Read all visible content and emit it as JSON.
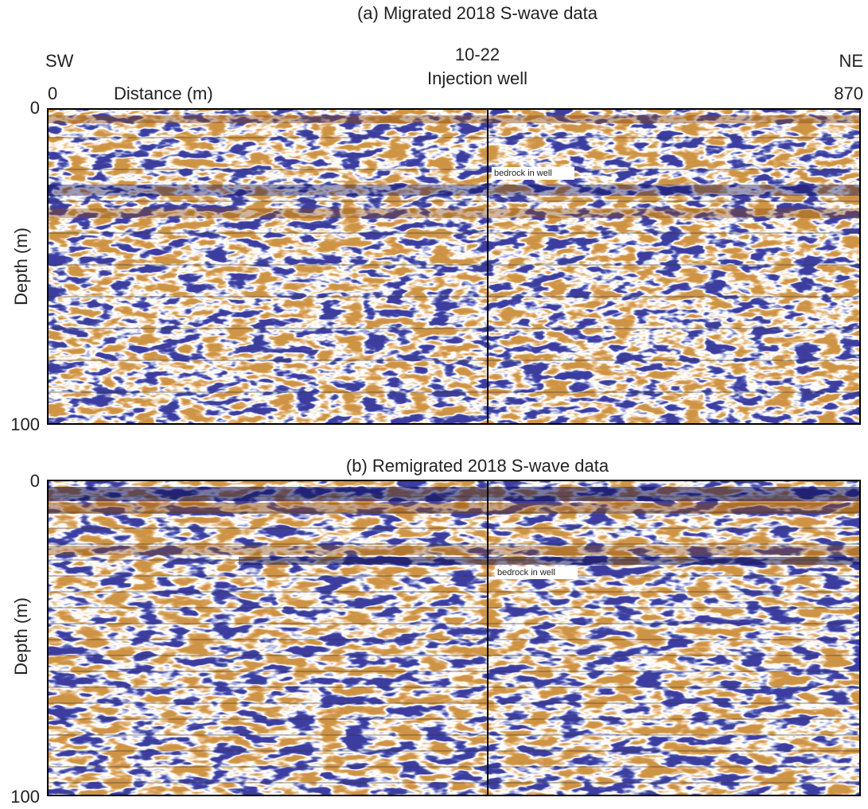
{
  "header": {
    "left": "SW",
    "right": "NE",
    "well_id": "10-22",
    "well_name": "Injection well",
    "distance_label": "Distance (m)",
    "distance_start": 0,
    "distance_end": 870
  },
  "panels": [
    {
      "title": "(a) Migrated 2018 S-wave data",
      "annotation": "bedrock in well",
      "depth_label": "Depth (m)",
      "depth_top": 0,
      "depth_bottom": 100
    },
    {
      "title": "(b) Remigrated 2018 S-wave data",
      "annotation": "bedrock in well",
      "depth_label": "Depth (m)",
      "depth_top": 0,
      "depth_bottom": 100
    }
  ]
}
